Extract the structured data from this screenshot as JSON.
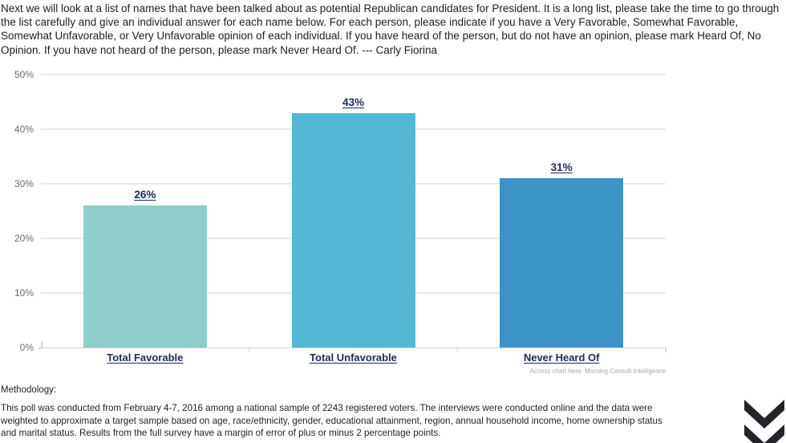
{
  "page": {
    "title": "Next we will look at a list of names that have been talked about as potential Republican candidates for President. It is a long list, please take the time to go through the list carefully and give an individual answer for each name below. For each person, please indicate if you have a Very Favorable, Somewhat Favorable, Somewhat Unfavorable, or Very Unfavorable opinion of each individual. If you have heard of the person, but do not have an opinion, please mark Heard Of, No Opinion. If you have not heard of the person, please mark Never Heard Of. --- Carly Fiorina"
  },
  "chart_data": {
    "type": "bar",
    "title": "",
    "categories": [
      "Total Favorable",
      "Total Unfavorable",
      "Never Heard Of"
    ],
    "values": [
      26,
      43,
      31
    ],
    "value_labels": [
      "26%",
      "43%",
      "31%"
    ],
    "bar_colors": [
      "#8FCECB",
      "#52B8D6",
      "#3A94C5"
    ],
    "xlabel": "",
    "ylabel": "",
    "ylim": [
      0,
      50
    ],
    "yticks": [
      0,
      10,
      20,
      30,
      40,
      50
    ],
    "ytick_labels": [
      "0%",
      "10%",
      "20%",
      "30%",
      "40%",
      "50%"
    ],
    "grid": true,
    "legend": false
  },
  "footer": {
    "access_text": "Access chart here: Morning Consult Intelligence",
    "methodology_label": "Methodology:",
    "methodology_text": "This poll was conducted from February 4-7, 2016 among a national sample of 2243 registered voters. The interviews were conducted online and the data were weighted to approximate a target sample based on age, race/ethnicity, gender, educational attainment, region, annual household income, home ownership status and marital status. Results from the full survey have a margin of error of plus or minus 2 percentage points."
  },
  "icons": {
    "logo": "morning-consult-m-logo"
  },
  "colors": {
    "bar_total_favorable": "#8FCECB",
    "bar_total_unfavorable": "#52B8D6",
    "bar_never_heard_of": "#3A94C5",
    "label_navy": "#1E2B52",
    "axis_line": "#C9D7E4",
    "gridline": "#E9E9E9",
    "ytick_text": "#6B6B6B",
    "access_text": "#A8A8A8",
    "body_text": "#1F1F1F",
    "logo": "#26242A"
  }
}
